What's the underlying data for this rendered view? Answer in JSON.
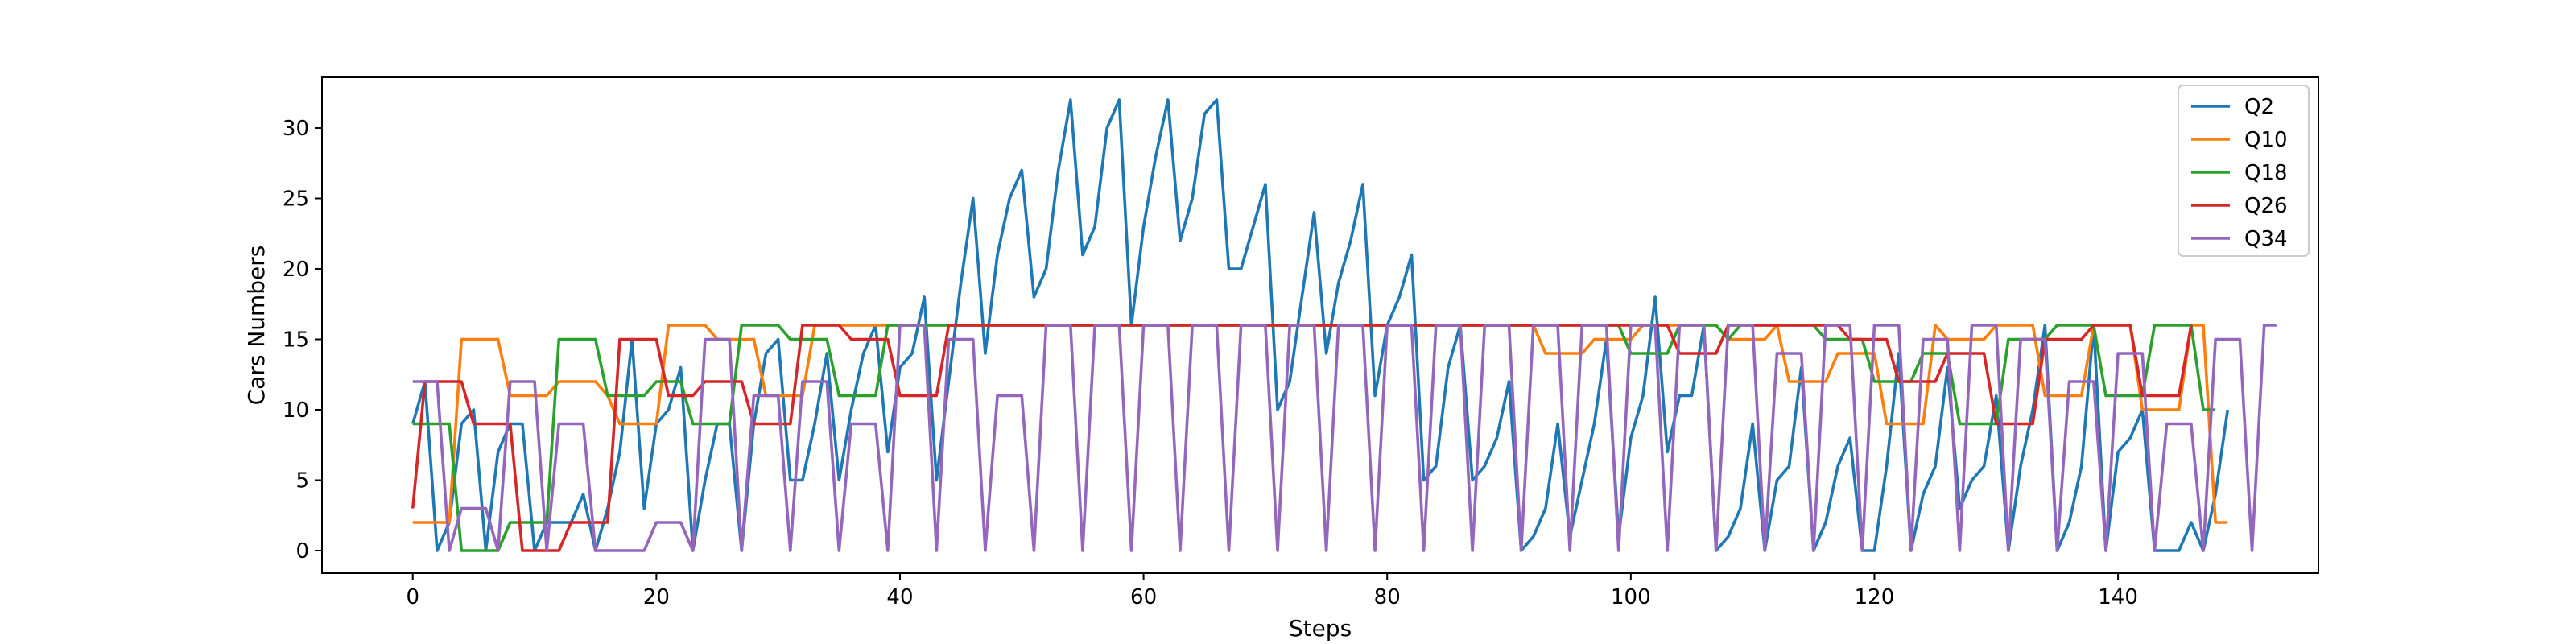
{
  "chart_data": {
    "type": "line",
    "title": "",
    "xlabel": "Steps",
    "ylabel": "Cars Numbers",
    "xlim": [
      -7.45,
      156.45
    ],
    "ylim": [
      -1.6,
      33.6
    ],
    "xticks": [
      0,
      20,
      40,
      60,
      80,
      100,
      120,
      140
    ],
    "yticks": [
      0,
      5,
      10,
      15,
      20,
      25,
      30
    ],
    "grid": false,
    "legend_position": "top-right",
    "series": [
      {
        "name": "Q2",
        "color": "#1f77b4",
        "values": [
          9,
          12,
          0,
          2,
          9,
          10,
          0,
          7,
          9,
          9,
          0,
          2,
          2,
          2,
          4,
          0,
          3,
          7,
          15,
          3,
          9,
          10,
          13,
          0,
          5,
          9,
          9,
          0,
          9,
          14,
          15,
          5,
          5,
          9,
          14,
          5,
          10,
          14,
          16,
          7,
          13,
          14,
          18,
          5,
          12,
          19,
          25,
          14,
          21,
          25,
          27,
          18,
          20,
          27,
          32,
          21,
          23,
          30,
          32,
          16,
          23,
          28,
          32,
          22,
          25,
          31,
          32,
          20,
          20,
          23,
          26,
          10,
          12,
          18,
          24,
          14,
          19,
          22,
          26,
          11,
          16,
          18,
          21,
          5,
          6,
          13,
          16,
          5,
          6,
          8,
          12,
          0,
          1,
          3,
          9,
          1,
          5,
          9,
          15,
          1,
          8,
          11,
          18,
          7,
          11,
          11,
          16,
          0,
          1,
          3,
          9,
          0,
          5,
          6,
          13,
          0,
          2,
          6,
          8,
          0,
          0,
          6,
          14,
          0,
          4,
          6,
          13,
          3,
          5,
          6,
          11,
          0,
          6,
          10,
          16,
          0,
          2,
          6,
          16,
          0,
          7,
          8,
          10,
          0,
          0,
          0,
          2,
          0,
          4,
          10
        ]
      },
      {
        "name": "Q10",
        "color": "#ff7f0e",
        "values": [
          2,
          2,
          2,
          2,
          15,
          15,
          15,
          15,
          11,
          11,
          11,
          11,
          12,
          12,
          12,
          12,
          11,
          9,
          9,
          9,
          9,
          16,
          16,
          16,
          16,
          15,
          15,
          15,
          15,
          11,
          11,
          11,
          11,
          16,
          16,
          16,
          16,
          16,
          16,
          16,
          16,
          16,
          16,
          16,
          16,
          16,
          16,
          16,
          16,
          16,
          16,
          16,
          16,
          16,
          16,
          16,
          16,
          16,
          16,
          16,
          16,
          16,
          16,
          16,
          16,
          16,
          16,
          16,
          16,
          16,
          16,
          16,
          16,
          16,
          16,
          16,
          16,
          16,
          16,
          16,
          16,
          16,
          16,
          16,
          16,
          16,
          16,
          16,
          16,
          16,
          16,
          16,
          16,
          14,
          14,
          14,
          14,
          15,
          15,
          15,
          15,
          16,
          16,
          16,
          16,
          16,
          16,
          16,
          15,
          15,
          15,
          15,
          16,
          12,
          12,
          12,
          12,
          14,
          14,
          14,
          14,
          9,
          9,
          9,
          9,
          16,
          15,
          15,
          15,
          15,
          16,
          16,
          16,
          16,
          11,
          11,
          11,
          11,
          16,
          16,
          16,
          16,
          10,
          10,
          10,
          10,
          16,
          16,
          2,
          2
        ]
      },
      {
        "name": "Q18",
        "color": "#2ca02c",
        "values": [
          9,
          9,
          9,
          9,
          0,
          0,
          0,
          0,
          2,
          2,
          2,
          2,
          15,
          15,
          15,
          15,
          11,
          11,
          11,
          11,
          12,
          12,
          12,
          9,
          9,
          9,
          9,
          16,
          16,
          16,
          16,
          15,
          15,
          15,
          15,
          11,
          11,
          11,
          11,
          16,
          16,
          16,
          16,
          16,
          16,
          16,
          16,
          16,
          16,
          16,
          16,
          16,
          16,
          16,
          16,
          16,
          16,
          16,
          16,
          16,
          16,
          16,
          16,
          16,
          16,
          16,
          16,
          16,
          16,
          16,
          16,
          16,
          16,
          16,
          16,
          16,
          16,
          16,
          16,
          16,
          16,
          16,
          16,
          16,
          16,
          16,
          16,
          16,
          16,
          16,
          16,
          16,
          16,
          16,
          16,
          16,
          16,
          16,
          16,
          16,
          14,
          14,
          14,
          14,
          16,
          16,
          16,
          16,
          15,
          16,
          16,
          16,
          16,
          16,
          16,
          16,
          15,
          15,
          15,
          15,
          12,
          12,
          12,
          12,
          14,
          14,
          14,
          9,
          9,
          9,
          9,
          15,
          15,
          15,
          15,
          16,
          16,
          16,
          16,
          11,
          11,
          11,
          11,
          16,
          16,
          16,
          16,
          10,
          10
        ]
      },
      {
        "name": "Q26",
        "color": "#d62728",
        "values": [
          3,
          12,
          12,
          12,
          12,
          9,
          9,
          9,
          9,
          0,
          0,
          0,
          0,
          2,
          2,
          2,
          2,
          15,
          15,
          15,
          15,
          11,
          11,
          11,
          12,
          12,
          12,
          12,
          9,
          9,
          9,
          9,
          16,
          16,
          16,
          16,
          15,
          15,
          15,
          15,
          11,
          11,
          11,
          11,
          16,
          16,
          16,
          16,
          16,
          16,
          16,
          16,
          16,
          16,
          16,
          16,
          16,
          16,
          16,
          16,
          16,
          16,
          16,
          16,
          16,
          16,
          16,
          16,
          16,
          16,
          16,
          16,
          16,
          16,
          16,
          16,
          16,
          16,
          16,
          16,
          16,
          16,
          16,
          16,
          16,
          16,
          16,
          16,
          16,
          16,
          16,
          16,
          16,
          16,
          16,
          16,
          16,
          16,
          16,
          16,
          16,
          16,
          16,
          16,
          14,
          14,
          14,
          14,
          16,
          16,
          16,
          16,
          16,
          16,
          16,
          16,
          16,
          16,
          15,
          15,
          15,
          15,
          12,
          12,
          12,
          12,
          14,
          14,
          14,
          14,
          9,
          9,
          9,
          9,
          15,
          15,
          15,
          15,
          16,
          16,
          16,
          16,
          11,
          11,
          11,
          11,
          16
        ]
      },
      {
        "name": "Q34",
        "color": "#9467bd",
        "values": [
          12,
          12,
          12,
          0,
          3,
          3,
          3,
          0,
          12,
          12,
          12,
          0,
          9,
          9,
          9,
          0,
          0,
          0,
          0,
          0,
          2,
          2,
          2,
          0,
          15,
          15,
          15,
          0,
          11,
          11,
          11,
          0,
          12,
          12,
          12,
          0,
          9,
          9,
          9,
          0,
          16,
          16,
          16,
          0,
          15,
          15,
          15,
          0,
          11,
          11,
          11,
          0,
          16,
          16,
          16,
          0,
          16,
          16,
          16,
          0,
          16,
          16,
          16,
          0,
          16,
          16,
          16,
          0,
          16,
          16,
          16,
          0,
          16,
          16,
          16,
          0,
          16,
          16,
          16,
          0,
          16,
          16,
          16,
          0,
          16,
          16,
          16,
          0,
          16,
          16,
          16,
          0,
          16,
          16,
          16,
          0,
          16,
          16,
          16,
          0,
          16,
          16,
          16,
          0,
          16,
          16,
          16,
          0,
          16,
          16,
          16,
          0,
          14,
          14,
          14,
          0,
          16,
          16,
          16,
          0,
          16,
          16,
          16,
          0,
          15,
          15,
          15,
          0,
          16,
          16,
          16,
          0,
          15,
          15,
          15,
          0,
          12,
          12,
          12,
          0,
          14,
          14,
          14,
          0,
          9,
          9,
          9,
          0,
          15,
          15,
          15,
          0,
          16,
          16
        ]
      }
    ]
  }
}
